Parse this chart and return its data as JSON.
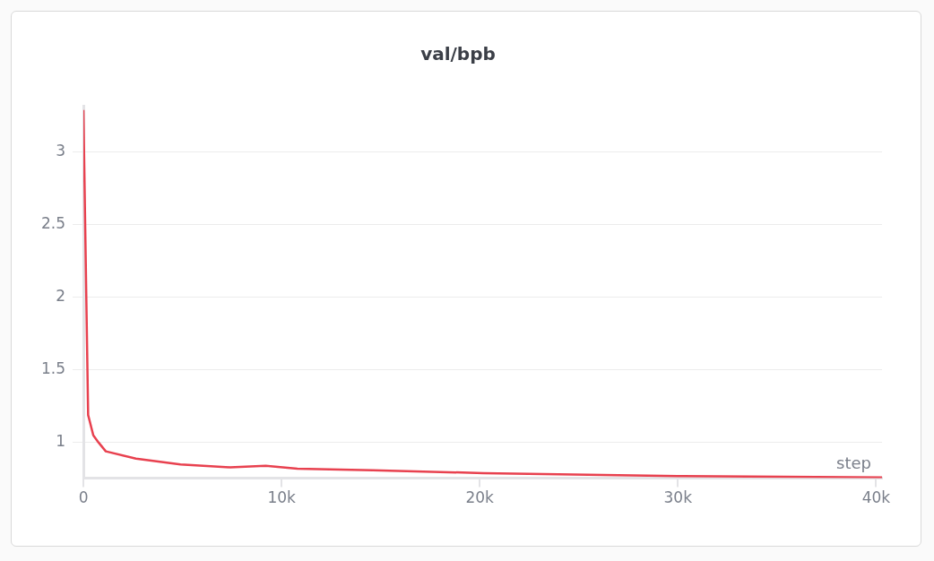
{
  "chart_data": {
    "type": "line",
    "title": "val/bpb",
    "xlabel": "step",
    "x": [
      0,
      240,
      500,
      770,
      1130,
      2650,
      4900,
      7400,
      9200,
      10800,
      14600,
      20200,
      30000,
      40300
    ],
    "series": [
      {
        "color": "#e8414f",
        "values": [
          3.29,
          1.19,
          1.05,
          1.0,
          0.94,
          0.89,
          0.85,
          0.83,
          0.84,
          0.82,
          0.81,
          0.79,
          0.77,
          0.76
        ]
      }
    ],
    "xlim": [
      0,
      40300
    ],
    "ylim": [
      0.755,
      3.32
    ],
    "xticks": [
      0,
      {
        "value": 10000,
        "label": "10k"
      },
      {
        "value": 20000,
        "label": "20k"
      },
      {
        "value": 30000,
        "label": "30k"
      },
      {
        "value": 40000,
        "label": "40k"
      }
    ],
    "yticks": [
      1,
      1.5,
      2,
      2.5,
      3
    ],
    "grid": "y",
    "legend": false
  }
}
